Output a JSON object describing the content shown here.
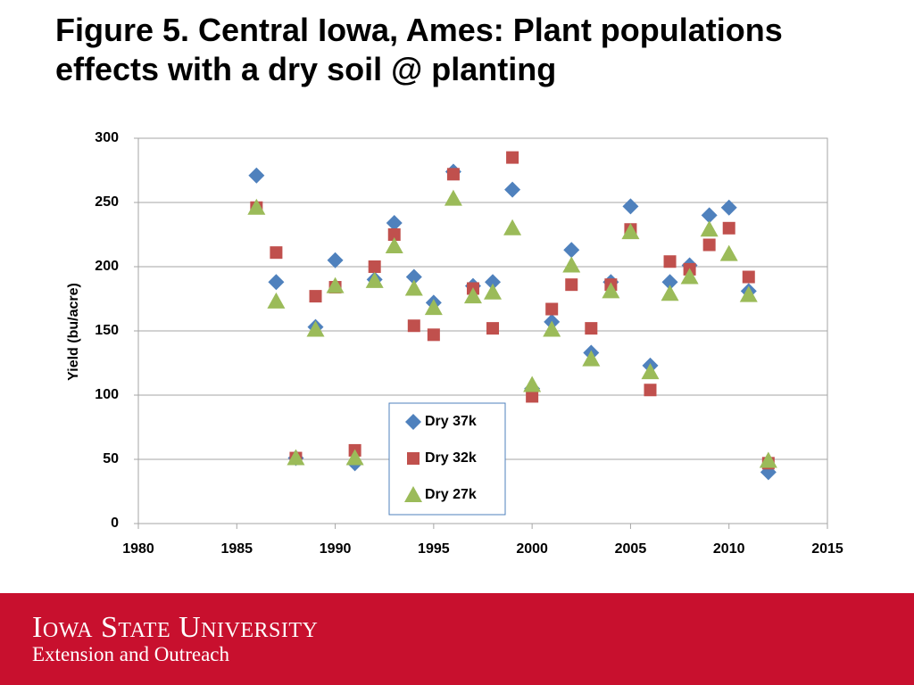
{
  "chart_data": {
    "type": "scatter",
    "title": "Figure 5. Central Iowa, Ames: Plant populations effects with a dry soil @ planting",
    "y_label": "Yield (bu/acre)",
    "x": [
      1986,
      1987,
      1988,
      1989,
      1990,
      1991,
      1992,
      1993,
      1994,
      1995,
      1996,
      1997,
      1998,
      1999,
      2000,
      2001,
      2002,
      2003,
      2004,
      2005,
      2006,
      2007,
      2008,
      2009,
      2010,
      2011,
      2012
    ],
    "series": [
      {
        "name": "Dry 37k",
        "color": "#4f81bd",
        "marker": "diamond",
        "values": [
          271,
          188,
          51,
          153,
          205,
          47,
          190,
          234,
          192,
          172,
          274,
          185,
          188,
          260,
          105,
          157,
          213,
          133,
          188,
          247,
          123,
          188,
          201,
          240,
          246,
          181,
          40
        ]
      },
      {
        "name": "Dry 32k",
        "color": "#c0504d",
        "marker": "square",
        "values": [
          246,
          211,
          51,
          177,
          184,
          57,
          200,
          225,
          154,
          147,
          272,
          183,
          152,
          285,
          99,
          167,
          186,
          152,
          186,
          229,
          104,
          204,
          198,
          217,
          230,
          192,
          47
        ]
      },
      {
        "name": "Dry 27k",
        "color": "#9bbb59",
        "marker": "triangle",
        "values": [
          246,
          173,
          51,
          151,
          185,
          51,
          189,
          216,
          183,
          168,
          253,
          177,
          180,
          230,
          108,
          151,
          201,
          128,
          181,
          227,
          118,
          179,
          192,
          229,
          210,
          178,
          49
        ]
      }
    ],
    "xlim": [
      1980,
      2015
    ],
    "xticks": [
      1980,
      1985,
      1990,
      1995,
      2000,
      2005,
      2010,
      2015
    ],
    "ylim": [
      0,
      300
    ],
    "yticks": [
      0,
      50,
      100,
      150,
      200,
      250,
      300
    ],
    "grid": true
  },
  "footer": {
    "university": "Iowa State University",
    "unit": "Extension and Outreach"
  }
}
